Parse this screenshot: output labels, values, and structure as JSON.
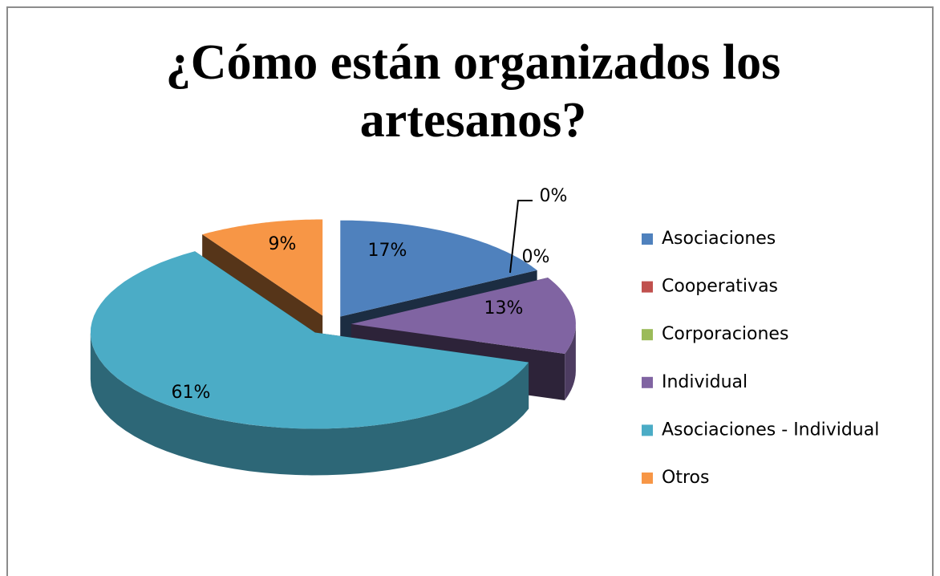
{
  "chart_data": {
    "type": "pie",
    "title": "¿Cómo están organizados los artesanos?",
    "categories": [
      "Asociaciones",
      "Cooperativas",
      "Corporaciones",
      "Individual",
      "Asociaciones - Individual",
      "Otros"
    ],
    "values": [
      17,
      0,
      0,
      13,
      61,
      9
    ],
    "value_labels": [
      "17%",
      "0%",
      "0%",
      "13%",
      "61%",
      "9%"
    ],
    "colors": [
      "#4f81bd",
      "#c0504d",
      "#9bbb59",
      "#8064a2",
      "#4bacc6",
      "#f79646"
    ],
    "legend": "right"
  }
}
